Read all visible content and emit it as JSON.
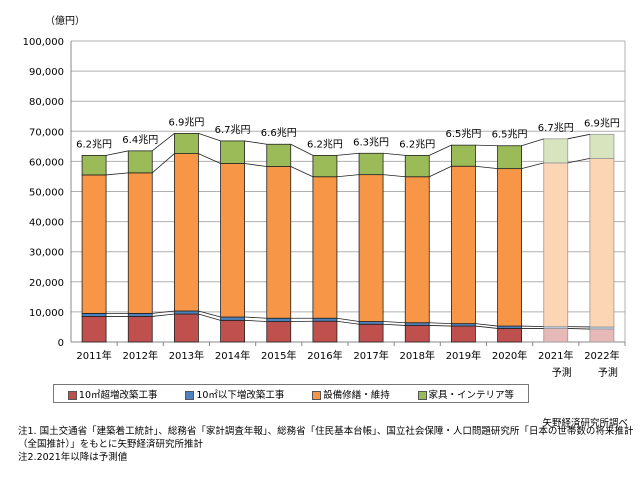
{
  "chart_data": {
    "type": "bar",
    "stacked": true,
    "unit_label": "（億円）",
    "categories": [
      "2011年",
      "2012年",
      "2013年",
      "2014年",
      "2015年",
      "2016年",
      "2017年",
      "2018年",
      "2019年",
      "2020年",
      "2021年",
      "2022年"
    ],
    "forecast_label": "予測",
    "forecast_categories": [
      "2021年",
      "2022年"
    ],
    "ylim": [
      0,
      100000
    ],
    "yticks": [
      "0",
      "10,000",
      "20,000",
      "30,000",
      "40,000",
      "50,000",
      "60,000",
      "70,000",
      "80,000",
      "90,000",
      "100,000"
    ],
    "grid": true,
    "totals_labels": [
      "6.2兆円",
      "6.4兆円",
      "6.9兆円",
      "6.7兆円",
      "6.6兆円",
      "6.2兆円",
      "6.3兆円",
      "6.2兆円",
      "6.5兆円",
      "6.5兆円",
      "6.7兆円",
      "6.9兆円"
    ],
    "series": [
      {
        "name": "10㎡超増改築工事",
        "color": "#c0504d",
        "forecast_color": "#e6b9b8",
        "values": [
          8500,
          8500,
          9300,
          7200,
          6800,
          6900,
          5900,
          5500,
          5300,
          4500,
          4500,
          4300
        ]
      },
      {
        "name": "10㎡以下増改築工事",
        "color": "#4f81bd",
        "forecast_color": "#b9cde5",
        "values": [
          1000,
          1000,
          1000,
          1100,
          1100,
          1000,
          900,
          900,
          800,
          800,
          600,
          700
        ]
      },
      {
        "name": "設備修繕・維持",
        "color": "#f79646",
        "forecast_color": "#fcd5b5",
        "values": [
          46000,
          46700,
          52300,
          51000,
          50400,
          47000,
          48800,
          48500,
          52300,
          52300,
          54400,
          56000
        ]
      },
      {
        "name": "家具・インテリア等",
        "color": "#9bbb59",
        "forecast_color": "#d7e4bd",
        "values": [
          6500,
          7300,
          6700,
          7500,
          7400,
          7100,
          7100,
          7100,
          7000,
          7600,
          8000,
          8000
        ]
      }
    ],
    "legend_position": "bottom"
  },
  "source": "矢野経済研究所調べ",
  "notes": [
    "注1. 国土交通省「建築着工統計」、総務省「家計調査年報」、総務省「住民基本台帳」、国立社会保障・人口問題研究所「日本の世帯数の将来推計",
    "（全国推計）」をもとに矢野経済研究所推計",
    "注2.2021年以降は予測値"
  ]
}
